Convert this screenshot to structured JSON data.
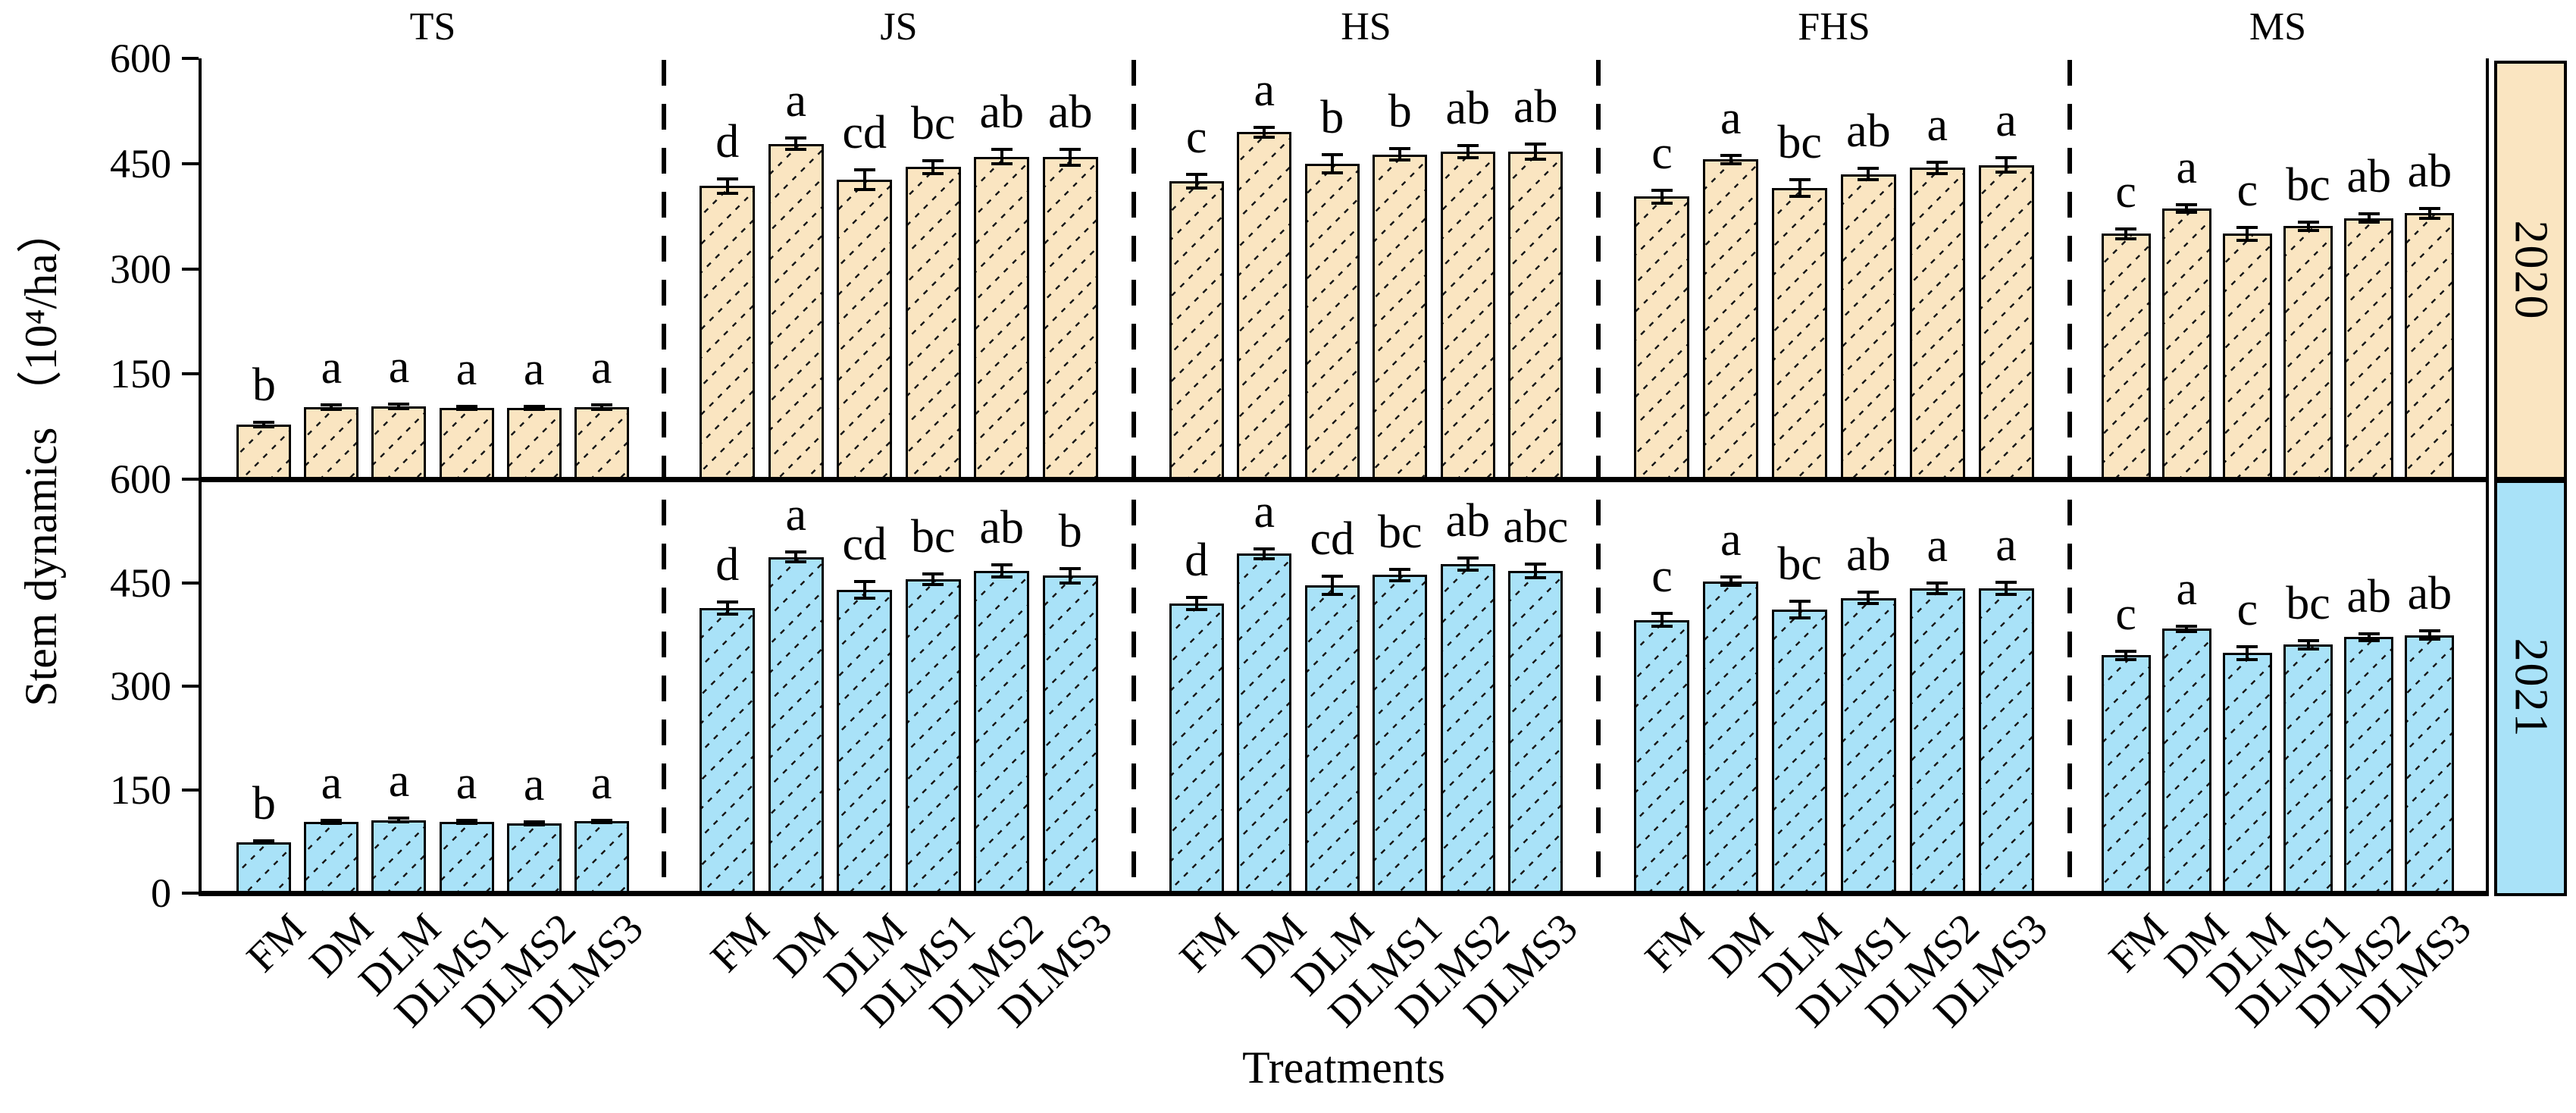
{
  "figure": {
    "ylabel": "Stem dynamics （10⁴/ha）",
    "xlabel": "Treatments"
  },
  "chart_data": {
    "type": "bar",
    "title": "",
    "xlabel": "Treatments",
    "ylabel": "Stem dynamics (10^4/ha)",
    "ylim": [
      0,
      600
    ],
    "yticks": [
      0,
      150,
      300,
      450,
      600
    ],
    "grid": false,
    "legend_position": "right-strips",
    "panels": [
      "TS",
      "JS",
      "HS",
      "FHS",
      "MS"
    ],
    "categories": [
      "FM",
      "DM",
      "DLM",
      "DLMS1",
      "DLMS2",
      "DLMS3"
    ],
    "axis_color": "#000000",
    "rows": [
      {
        "year": "2020",
        "bar_fill": "#FAE5C1",
        "strip_fill": "#FAE5C1",
        "panels": [
          {
            "panel": "TS",
            "values": [
              78,
              103,
              104,
              102,
              102,
              103
            ],
            "errors": [
              3,
              3,
              3,
              2,
              2,
              3
            ],
            "letters": [
              "b",
              "a",
              "a",
              "a",
              "a",
              "a"
            ]
          },
          {
            "panel": "JS",
            "values": [
              418,
              478,
              427,
              445,
              460,
              459
            ],
            "errors": [
              10,
              8,
              14,
              9,
              10,
              11
            ],
            "letters": [
              "d",
              "a",
              "cd",
              "bc",
              "ab",
              "ab"
            ]
          },
          {
            "panel": "HS",
            "values": [
              425,
              495,
              450,
              463,
              467,
              467
            ],
            "errors": [
              10,
              7,
              13,
              8,
              9,
              11
            ],
            "letters": [
              "c",
              "a",
              "b",
              "b",
              "ab",
              "ab"
            ]
          },
          {
            "panel": "FHS",
            "values": [
              403,
              456,
              415,
              435,
              444,
              448
            ],
            "errors": [
              9,
              6,
              12,
              8,
              8,
              10
            ],
            "letters": [
              "c",
              "a",
              "bc",
              "ab",
              "a",
              "a"
            ]
          },
          {
            "panel": "MS",
            "values": [
              350,
              386,
              350,
              361,
              372,
              379
            ],
            "errors": [
              7,
              5,
              9,
              6,
              6,
              7
            ],
            "letters": [
              "c",
              "a",
              "c",
              "bc",
              "ab",
              "ab"
            ]
          }
        ]
      },
      {
        "year": "2021",
        "bar_fill": "#A9E2F8",
        "strip_fill": "#A9E2F8",
        "panels": [
          {
            "panel": "TS",
            "values": [
              74,
              103,
              106,
              103,
              101,
              104
            ],
            "errors": [
              2,
              2,
              3,
              2,
              2,
              2
            ],
            "letters": [
              "b",
              "a",
              "a",
              "a",
              "a",
              "a"
            ]
          },
          {
            "panel": "JS",
            "values": [
              413,
              487,
              440,
              455,
              467,
              460
            ],
            "errors": [
              9,
              7,
              12,
              8,
              9,
              10
            ],
            "letters": [
              "d",
              "a",
              "cd",
              "bc",
              "ab",
              "b"
            ]
          },
          {
            "panel": "HS",
            "values": [
              420,
              492,
              446,
              461,
              477,
              467
            ],
            "errors": [
              9,
              7,
              13,
              8,
              9,
              10
            ],
            "letters": [
              "d",
              "a",
              "cd",
              "bc",
              "ab",
              "abc"
            ]
          },
          {
            "panel": "FHS",
            "values": [
              396,
              452,
              411,
              428,
              442,
              442
            ],
            "errors": [
              9,
              6,
              12,
              8,
              8,
              9
            ],
            "letters": [
              "c",
              "a",
              "bc",
              "ab",
              "a",
              "a"
            ]
          },
          {
            "panel": "MS",
            "values": [
              345,
              383,
              348,
              360,
              371,
              374
            ],
            "errors": [
              6,
              4,
              9,
              6,
              5,
              6
            ],
            "letters": [
              "c",
              "a",
              "c",
              "bc",
              "ab",
              "ab"
            ]
          }
        ]
      }
    ],
    "ytick_labels_top_row": [
      "600",
      "450",
      "300",
      "150"
    ],
    "ytick_labels_bottom_row": [
      "600",
      "450",
      "300",
      "150",
      "0"
    ]
  }
}
